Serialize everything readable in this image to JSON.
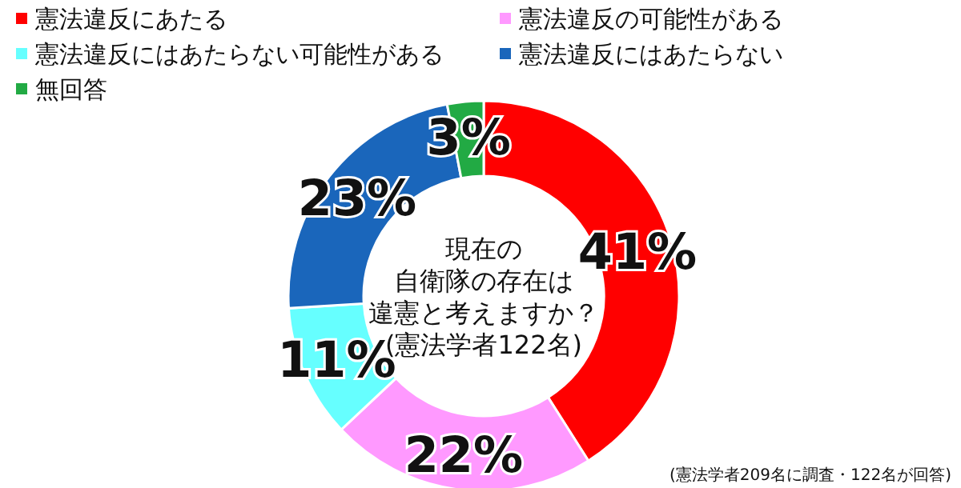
{
  "chart_data": {
    "type": "donut",
    "categories": [
      "憲法違反にあたる",
      "憲法違反の可能性がある",
      "憲法違反にはあたらない可能性がある",
      "憲法違反にはあたらない",
      "無回答"
    ],
    "values": [
      41,
      22,
      11,
      23,
      3
    ],
    "colors": [
      "#ff0000",
      "#ff99ff",
      "#66ffff",
      "#1a66bb",
      "#22aa44"
    ],
    "value_labels": [
      "41%",
      "22%",
      "11%",
      "23%",
      "3%"
    ],
    "legend": "top",
    "annotations": [
      "現在の",
      "自衛隊の存在は",
      "違憲と考えますか？",
      "(憲法学者122名)",
      "(憲法学者209名に調査・122名が回答)"
    ]
  }
}
